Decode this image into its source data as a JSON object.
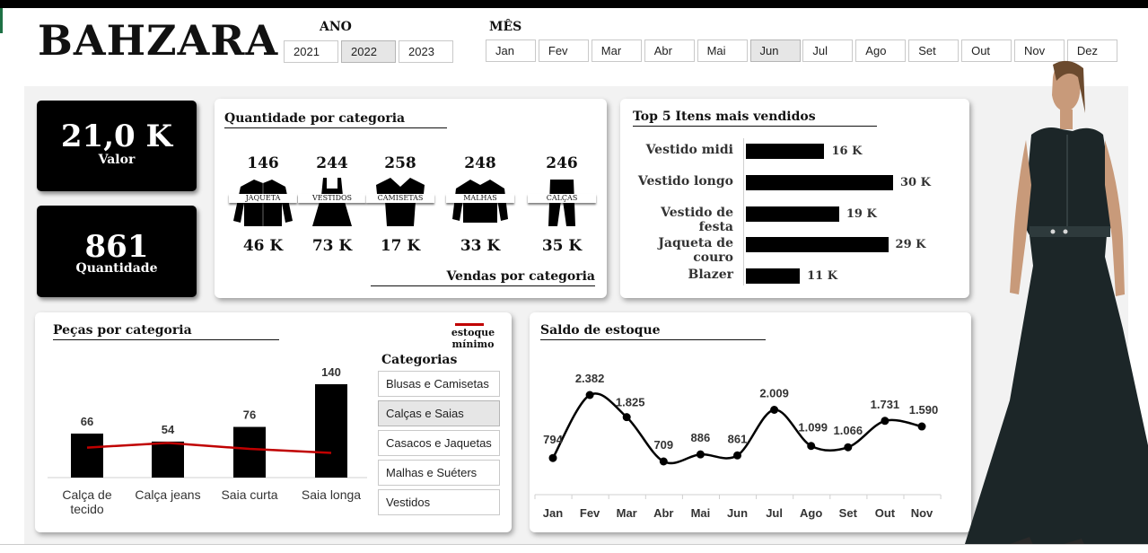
{
  "brand": "BAHZARA",
  "year_slicer": {
    "title": "ANO",
    "options": [
      "2021",
      "2022",
      "2023"
    ],
    "selected": "2022"
  },
  "month_slicer": {
    "title": "MÊS",
    "options": [
      "Jan",
      "Fev",
      "Mar",
      "Abr",
      "Mai",
      "Jun",
      "Jul",
      "Ago",
      "Set",
      "Out",
      "Nov",
      "Dez"
    ],
    "selected": "Jun"
  },
  "kpis": {
    "valor": {
      "value": "21,0 K",
      "label": "Valor"
    },
    "quantidade": {
      "value": "861",
      "label": "Quantidade"
    }
  },
  "categories_card": {
    "title": "Quantidade por categoria",
    "subtitle": "Vendas por categoria",
    "items": [
      {
        "name": "JAQUETA",
        "quantity": "146",
        "sales": "46 K",
        "icon": "jacket-icon"
      },
      {
        "name": "VESTIDOS",
        "quantity": "244",
        "sales": "73 K",
        "icon": "dress-icon"
      },
      {
        "name": "CAMISETAS",
        "quantity": "258",
        "sales": "17 K",
        "icon": "tshirt-icon"
      },
      {
        "name": "MALHAS",
        "quantity": "248",
        "sales": "33 K",
        "icon": "sweater-icon"
      },
      {
        "name": "CALÇAS",
        "quantity": "246",
        "sales": "35 K",
        "icon": "pants-icon"
      }
    ]
  },
  "top5": {
    "title": "Top 5 Itens mais vendidos",
    "items": [
      {
        "name": "Vestido midi",
        "label": "16 K"
      },
      {
        "name": "Vestido longo",
        "label": "30 K"
      },
      {
        "name": "Vestido de festa",
        "label": "19 K"
      },
      {
        "name": "Jaqueta de couro",
        "label": "29 K"
      },
      {
        "name": "Blazer",
        "label": "11 K"
      }
    ]
  },
  "pecas_card": {
    "title": "Peças por categoria",
    "legend": "estoque\nmínimo",
    "slicer_title": "Categorias",
    "slicer_options": [
      "Blusas e Camisetas",
      "Calças e Saias",
      "Casacos e Jaquetas",
      "Malhas e Suéters",
      "Vestidos"
    ],
    "slicer_selected": "Calças e Saias"
  },
  "saldo_card": {
    "title": "Saldo de estoque"
  },
  "chart_data": [
    {
      "type": "bar",
      "title": "Peças por categoria",
      "categories": [
        "Calça de tecido",
        "Calça jeans",
        "Saia curta",
        "Saia longa"
      ],
      "series": [
        {
          "name": "Peças",
          "values": [
            66,
            54,
            76,
            140
          ]
        },
        {
          "name": "estoque mínimo",
          "type": "line",
          "values": [
            45,
            52,
            43,
            37
          ]
        }
      ],
      "data_labels": [
        "66",
        "54",
        "76",
        "140"
      ],
      "ylim": [
        0,
        150
      ],
      "legend": "top-right",
      "colors": {
        "bars": "#000000",
        "line": "#c00000"
      }
    },
    {
      "type": "bar",
      "title": "Top 5 Itens mais vendidos",
      "orientation": "horizontal",
      "categories": [
        "Vestido midi",
        "Vestido longo",
        "Vestido de festa",
        "Jaqueta de couro",
        "Blazer"
      ],
      "values": [
        16,
        30,
        19,
        29,
        11
      ],
      "data_labels": [
        "16 K",
        "30 K",
        "19 K",
        "29 K",
        "11 K"
      ]
    },
    {
      "type": "line",
      "title": "Saldo de estoque",
      "x": [
        "Jan",
        "Fev",
        "Mar",
        "Abr",
        "Mai",
        "Jun",
        "Jul",
        "Ago",
        "Set",
        "Out",
        "Nov"
      ],
      "values": [
        794,
        2382,
        1825,
        709,
        886,
        861,
        2009,
        1099,
        1066,
        1731,
        1590
      ],
      "data_labels": [
        "794",
        "2.382",
        "1.825",
        "709",
        "886",
        "861",
        "2.009",
        "1.099",
        "1.066",
        "1.731",
        "1.590"
      ],
      "smooth": true
    }
  ],
  "colors": {
    "accent": "#000000",
    "line_red": "#c00000",
    "panel_bg": "#f2f2f2"
  }
}
